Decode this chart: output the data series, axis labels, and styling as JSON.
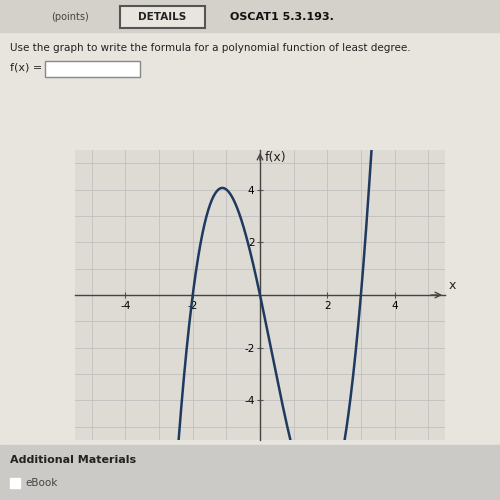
{
  "title": "f(x)",
  "xlabel": "x",
  "xlim": [
    -5.5,
    5.5
  ],
  "ylim": [
    -5.5,
    5.5
  ],
  "xticks": [
    -4,
    -2,
    2,
    4
  ],
  "yticks": [
    -4,
    -2,
    2,
    4
  ],
  "curve_color": "#1e3a5f",
  "curve_linewidth": 1.8,
  "grid_color": "#bbbbbb",
  "background_color": "#dedad4",
  "header_text": "OSCAT1 5.3.193.",
  "question_text": "Use the graph to write the formula for a polynomial function of least degree.",
  "answer_label": "f(x) =",
  "additional_materials": "Additional Materials",
  "ebook_text": "eBook",
  "fig_bg": "#e8e4de",
  "header_bg": "#d4d0ca",
  "details_btn_color": "#3a5a8a",
  "bottom_bg": "#cccac6"
}
